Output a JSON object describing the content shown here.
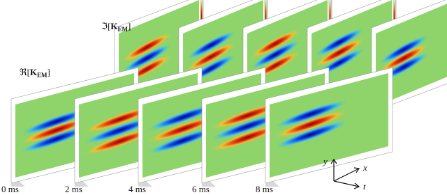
{
  "figure": {
    "real_label": {
      "prefix": "ℜ[",
      "symbol": "K",
      "subscript": "EM",
      "suffix": "]"
    },
    "imag_label": {
      "prefix": "ℑ[",
      "symbol": "K",
      "subscript": "EM",
      "suffix": "]"
    },
    "times": [
      "0 ms",
      "2 ms",
      "4 ms",
      "6 ms",
      "8 ms"
    ],
    "axes": {
      "y": "y",
      "x": "x",
      "t": "t"
    }
  }
}
